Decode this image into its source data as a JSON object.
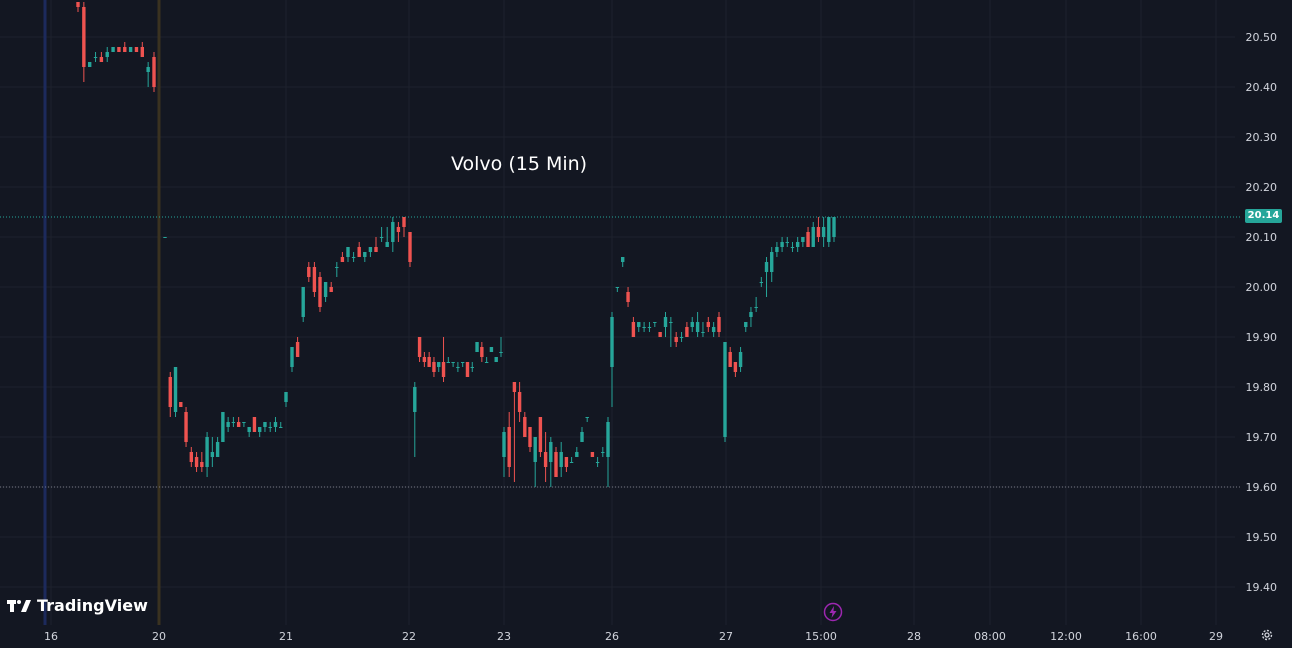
{
  "app": {
    "brand": "TradingView",
    "brand_glyph": "TV",
    "settings_icon": "gear-icon",
    "event_icon": "lightning-bolt-icon"
  },
  "colors": {
    "background": "#131722",
    "up": "#26a69a",
    "down": "#ef5350",
    "grid": "#1e222d",
    "text": "#d1d4dc"
  },
  "chart_data": {
    "type": "candlestick",
    "title": "Volvo (15 Min)",
    "last_price": "20.14",
    "ylim": [
      19.35,
      20.57
    ],
    "y_ticks": [
      "20.50",
      "20.40",
      "20.30",
      "20.20",
      "20.10",
      "20.00",
      "19.90",
      "19.80",
      "19.70",
      "19.60",
      "19.50",
      "19.40"
    ],
    "x_ticks": [
      "16",
      "20",
      "21",
      "22",
      "23",
      "26",
      "27",
      "15:00",
      "28",
      "08:00",
      "12:00",
      "16:00",
      "29"
    ],
    "reference_lines": [
      20.14,
      19.6
    ],
    "candles": [
      [
        20.57,
        20.57,
        20.55,
        20.56
      ],
      [
        20.56,
        20.57,
        20.41,
        20.44
      ],
      [
        20.44,
        20.45,
        20.44,
        20.45
      ],
      [
        20.46,
        20.47,
        20.45,
        20.46
      ],
      [
        20.46,
        20.47,
        20.45,
        20.45
      ],
      [
        20.46,
        20.48,
        20.45,
        20.47
      ],
      [
        20.47,
        20.48,
        20.47,
        20.48
      ],
      [
        20.48,
        20.48,
        20.47,
        20.47
      ],
      [
        20.48,
        20.49,
        20.47,
        20.47
      ],
      [
        20.47,
        20.48,
        20.47,
        20.48
      ],
      [
        20.48,
        20.48,
        20.47,
        20.47
      ],
      [
        20.48,
        20.49,
        20.46,
        20.46
      ],
      [
        20.43,
        20.45,
        20.4,
        20.44
      ],
      [
        20.46,
        20.47,
        20.39,
        20.4
      ],
      [
        20.1,
        20.1,
        20.1,
        20.1
      ],
      [
        19.82,
        19.83,
        19.74,
        19.76
      ],
      [
        19.75,
        19.84,
        19.74,
        19.84
      ],
      [
        19.77,
        19.77,
        19.76,
        19.76
      ],
      [
        19.75,
        19.76,
        19.68,
        19.69
      ],
      [
        19.67,
        19.68,
        19.64,
        19.65
      ],
      [
        19.66,
        19.67,
        19.63,
        19.64
      ],
      [
        19.65,
        19.67,
        19.63,
        19.64
      ],
      [
        19.64,
        19.71,
        19.62,
        19.7
      ],
      [
        19.66,
        19.7,
        19.64,
        19.67
      ],
      [
        19.66,
        19.7,
        19.66,
        19.69
      ],
      [
        19.69,
        19.75,
        19.69,
        19.75
      ],
      [
        19.72,
        19.74,
        19.71,
        19.73
      ],
      [
        19.73,
        19.74,
        19.72,
        19.73
      ],
      [
        19.73,
        19.74,
        19.72,
        19.72
      ],
      [
        19.73,
        19.73,
        19.72,
        19.73
      ],
      [
        19.71,
        19.72,
        19.7,
        19.72
      ],
      [
        19.74,
        19.74,
        19.71,
        19.71
      ],
      [
        19.71,
        19.72,
        19.7,
        19.72
      ],
      [
        19.72,
        19.73,
        19.71,
        19.73
      ],
      [
        19.72,
        19.73,
        19.71,
        19.72
      ],
      [
        19.72,
        19.74,
        19.71,
        19.73
      ],
      [
        19.72,
        19.73,
        19.72,
        19.72
      ],
      [
        19.77,
        19.79,
        19.76,
        19.79
      ],
      [
        19.84,
        19.87,
        19.83,
        19.88
      ],
      [
        19.89,
        19.9,
        19.86,
        19.86
      ],
      [
        19.94,
        20.0,
        19.93,
        20.0
      ],
      [
        20.04,
        20.05,
        20.01,
        20.02
      ],
      [
        20.04,
        20.05,
        19.98,
        19.99
      ],
      [
        20.02,
        20.03,
        19.95,
        19.96
      ],
      [
        19.98,
        20.01,
        19.97,
        20.01
      ],
      [
        20.0,
        20.01,
        19.99,
        19.99
      ],
      [
        20.04,
        20.05,
        20.02,
        20.04
      ],
      [
        20.06,
        20.07,
        20.05,
        20.05
      ],
      [
        20.06,
        20.08,
        20.05,
        20.08
      ],
      [
        20.06,
        20.07,
        20.05,
        20.06
      ],
      [
        20.08,
        20.09,
        20.06,
        20.06
      ],
      [
        20.06,
        20.07,
        20.05,
        20.07
      ],
      [
        20.07,
        20.08,
        20.06,
        20.08
      ],
      [
        20.08,
        20.1,
        20.07,
        20.07
      ],
      [
        20.1,
        20.12,
        20.09,
        20.1
      ],
      [
        20.08,
        20.12,
        20.08,
        20.09
      ],
      [
        20.09,
        20.14,
        20.07,
        20.13
      ],
      [
        20.12,
        20.13,
        20.09,
        20.11
      ],
      [
        20.14,
        20.14,
        20.1,
        20.12
      ],
      [
        20.11,
        20.11,
        20.04,
        20.05
      ],
      [
        19.75,
        19.81,
        19.66,
        19.8
      ],
      [
        19.9,
        19.9,
        19.85,
        19.86
      ],
      [
        19.86,
        19.87,
        19.84,
        19.85
      ],
      [
        19.86,
        19.87,
        19.84,
        19.84
      ],
      [
        19.85,
        19.86,
        19.82,
        19.83
      ],
      [
        19.84,
        19.85,
        19.83,
        19.85
      ],
      [
        19.85,
        19.9,
        19.81,
        19.82
      ],
      [
        19.85,
        19.86,
        19.85,
        19.85
      ],
      [
        19.85,
        19.85,
        19.84,
        19.85
      ],
      [
        19.84,
        19.85,
        19.83,
        19.84
      ],
      [
        19.85,
        19.85,
        19.84,
        19.85
      ],
      [
        19.85,
        19.85,
        19.82,
        19.82
      ],
      [
        19.84,
        19.85,
        19.83,
        19.84
      ],
      [
        19.87,
        19.89,
        19.87,
        19.89
      ],
      [
        19.88,
        19.89,
        19.85,
        19.86
      ],
      [
        19.85,
        19.86,
        19.85,
        19.85
      ],
      [
        19.87,
        19.88,
        19.87,
        19.88
      ],
      [
        19.85,
        19.86,
        19.85,
        19.86
      ],
      [
        19.87,
        19.9,
        19.86,
        19.87
      ],
      [
        19.66,
        19.72,
        19.62,
        19.71
      ],
      [
        19.72,
        19.75,
        19.62,
        19.64
      ],
      [
        19.81,
        19.81,
        19.61,
        19.79
      ],
      [
        19.79,
        19.81,
        19.73,
        19.75
      ],
      [
        19.74,
        19.75,
        19.7,
        19.7
      ],
      [
        19.72,
        19.72,
        19.67,
        19.68
      ],
      [
        19.65,
        19.7,
        19.6,
        19.7
      ],
      [
        19.74,
        19.74,
        19.66,
        19.67
      ],
      [
        19.67,
        19.71,
        19.61,
        19.64
      ],
      [
        19.65,
        19.7,
        19.6,
        19.69
      ],
      [
        19.67,
        19.68,
        19.62,
        19.62
      ],
      [
        19.64,
        19.69,
        19.62,
        19.67
      ],
      [
        19.66,
        19.66,
        19.63,
        19.64
      ],
      [
        19.65,
        19.66,
        19.65,
        19.65
      ],
      [
        19.66,
        19.68,
        19.66,
        19.67
      ],
      [
        19.69,
        19.72,
        19.69,
        19.71
      ],
      [
        19.74,
        19.74,
        19.73,
        19.74
      ],
      [
        19.67,
        19.67,
        19.66,
        19.66
      ],
      [
        19.65,
        19.66,
        19.64,
        19.65
      ],
      [
        19.67,
        19.68,
        19.66,
        19.67
      ],
      [
        19.66,
        19.74,
        19.6,
        19.73
      ],
      [
        19.84,
        19.95,
        19.76,
        19.94
      ],
      [
        20.0,
        20.0,
        19.99,
        20.0
      ],
      [
        20.05,
        20.06,
        20.04,
        20.06
      ],
      [
        19.99,
        20.0,
        19.96,
        19.97
      ],
      [
        19.93,
        19.94,
        19.9,
        19.9
      ],
      [
        19.92,
        19.93,
        19.91,
        19.93
      ],
      [
        19.92,
        19.93,
        19.91,
        19.92
      ],
      [
        19.92,
        19.93,
        19.91,
        19.92
      ],
      [
        19.93,
        19.93,
        19.92,
        19.93
      ],
      [
        19.91,
        19.91,
        19.9,
        19.9
      ],
      [
        19.92,
        19.95,
        19.9,
        19.94
      ],
      [
        19.93,
        19.94,
        19.88,
        19.93
      ],
      [
        19.9,
        19.91,
        19.88,
        19.89
      ],
      [
        19.9,
        19.91,
        19.89,
        19.9
      ],
      [
        19.92,
        19.93,
        19.9,
        19.9
      ],
      [
        19.92,
        19.94,
        19.91,
        19.93
      ],
      [
        19.91,
        19.95,
        19.9,
        19.93
      ],
      [
        19.91,
        19.93,
        19.9,
        19.91
      ],
      [
        19.93,
        19.94,
        19.91,
        19.92
      ],
      [
        19.91,
        19.93,
        19.9,
        19.92
      ],
      [
        19.94,
        19.95,
        19.9,
        19.91
      ],
      [
        19.7,
        19.89,
        19.69,
        19.89
      ],
      [
        19.87,
        19.88,
        19.84,
        19.84
      ],
      [
        19.85,
        19.85,
        19.82,
        19.83
      ],
      [
        19.84,
        19.88,
        19.83,
        19.87
      ],
      [
        19.92,
        19.93,
        19.91,
        19.93
      ],
      [
        19.94,
        19.96,
        19.92,
        19.95
      ],
      [
        19.96,
        19.98,
        19.95,
        19.96
      ],
      [
        20.01,
        20.02,
        20.0,
        20.01
      ],
      [
        20.03,
        20.06,
        19.98,
        20.05
      ],
      [
        20.03,
        20.08,
        20.01,
        20.07
      ],
      [
        20.07,
        20.09,
        20.06,
        20.08
      ],
      [
        20.08,
        20.1,
        20.07,
        20.09
      ],
      [
        20.09,
        20.1,
        20.08,
        20.09
      ],
      [
        20.08,
        20.09,
        20.07,
        20.08
      ],
      [
        20.08,
        20.1,
        20.07,
        20.09
      ],
      [
        20.09,
        20.1,
        20.08,
        20.1
      ],
      [
        20.11,
        20.12,
        20.08,
        20.08
      ],
      [
        20.08,
        20.13,
        20.08,
        20.12
      ],
      [
        20.12,
        20.14,
        20.09,
        20.1
      ],
      [
        20.1,
        20.14,
        20.08,
        20.12
      ],
      [
        20.09,
        20.14,
        20.08,
        20.14
      ],
      [
        20.1,
        20.14,
        20.09,
        20.14
      ]
    ]
  }
}
